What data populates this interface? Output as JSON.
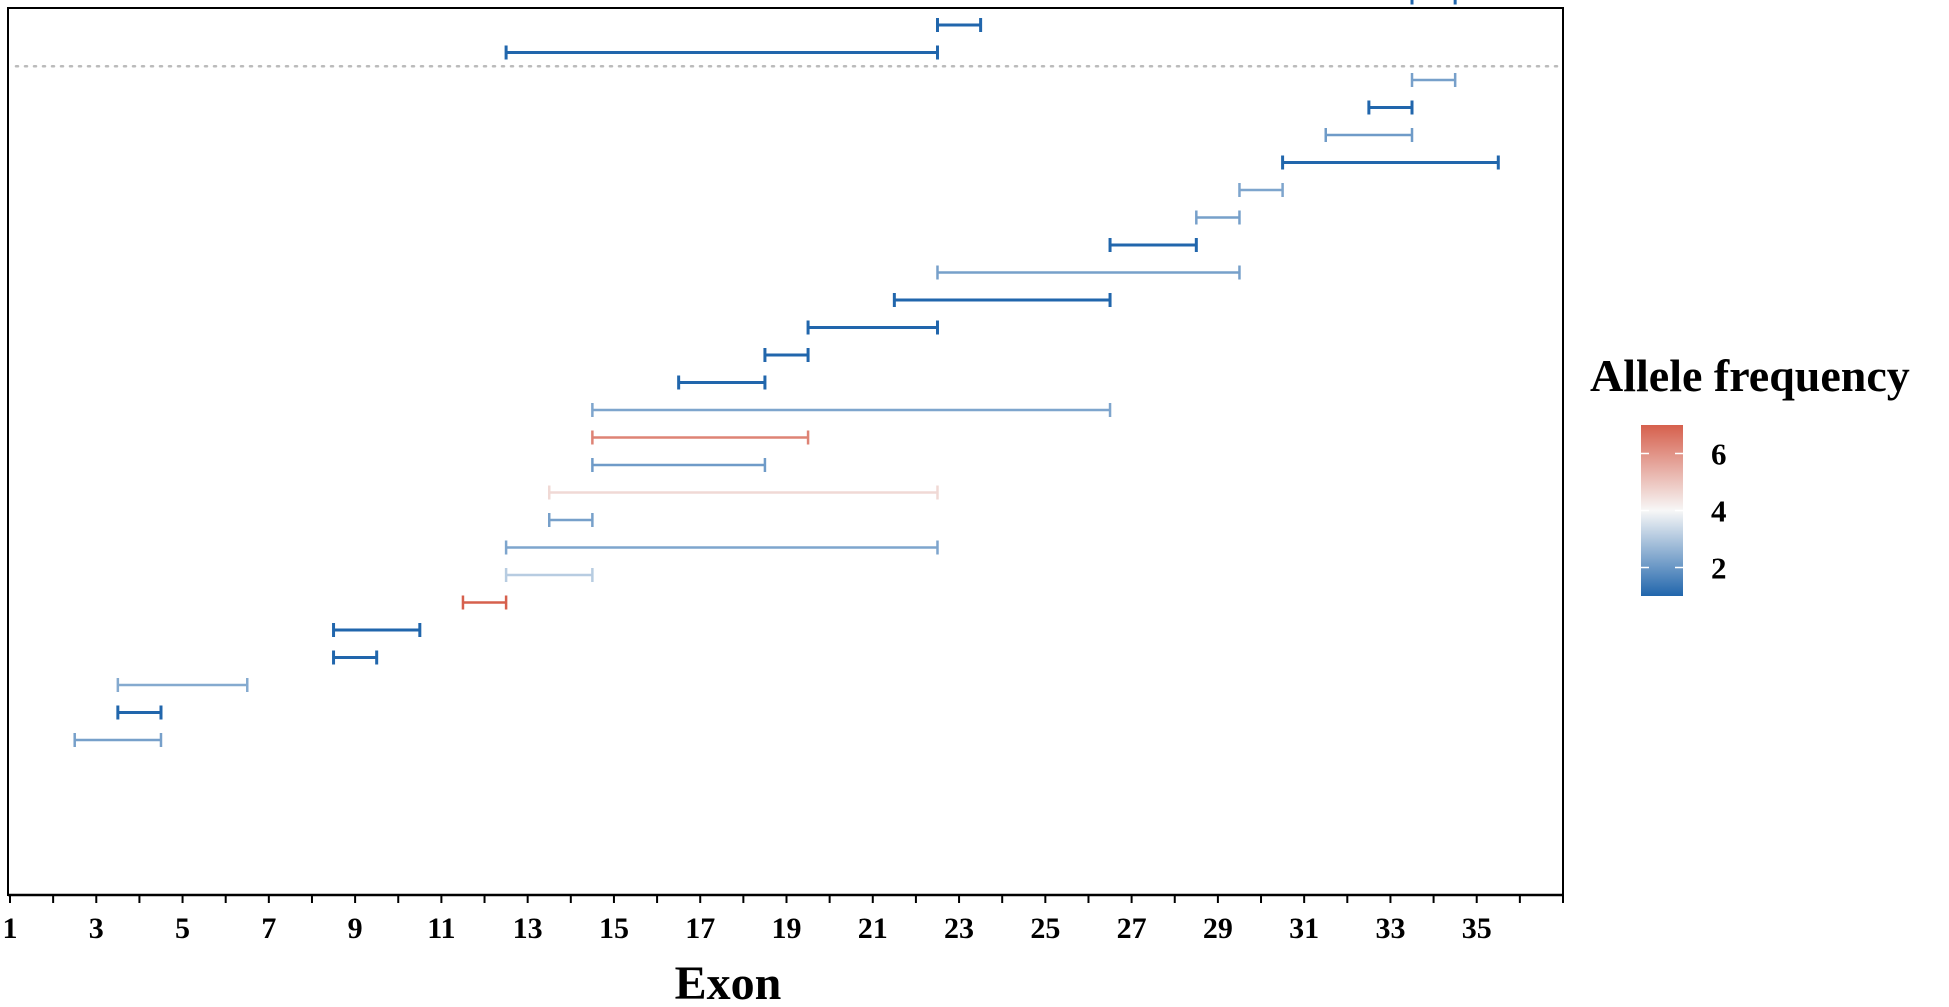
{
  "chart_data": {
    "type": "range",
    "xlabel": "Exon",
    "ylabel": "",
    "xlim": [
      1,
      37
    ],
    "x_ticks": [
      1,
      3,
      5,
      7,
      9,
      11,
      13,
      15,
      17,
      19,
      21,
      23,
      25,
      27,
      29,
      31,
      33,
      35
    ],
    "grid": false,
    "legend": {
      "title": "Allele frequency",
      "position": "right",
      "ticks": [
        2,
        4,
        6
      ],
      "range": [
        1,
        7
      ],
      "low_color": "#2166ac",
      "mid_color": "#f7f7f7",
      "high_color": "#d6604d"
    },
    "separator": {
      "after_row": 25,
      "style": "dotted",
      "color": "#bbbbbb"
    },
    "segments": [
      {
        "row": 1,
        "start": 2.5,
        "end": 4.5,
        "value": 2.2
      },
      {
        "row": 2,
        "start": 3.5,
        "end": 4.5,
        "value": 1.0
      },
      {
        "row": 3,
        "start": 3.5,
        "end": 6.5,
        "value": 2.4
      },
      {
        "row": 4,
        "start": 8.5,
        "end": 9.5,
        "value": 1.0
      },
      {
        "row": 5,
        "start": 8.5,
        "end": 10.5,
        "value": 1.0
      },
      {
        "row": 6,
        "start": 11.5,
        "end": 12.5,
        "value": 7.0
      },
      {
        "row": 7,
        "start": 12.5,
        "end": 14.5,
        "value": 3.1
      },
      {
        "row": 8,
        "start": 12.5,
        "end": 22.5,
        "value": 2.3
      },
      {
        "row": 9,
        "start": 13.5,
        "end": 14.5,
        "value": 2.2
      },
      {
        "row": 10,
        "start": 13.5,
        "end": 22.5,
        "value": 4.6
      },
      {
        "row": 11,
        "start": 14.5,
        "end": 18.5,
        "value": 2.1
      },
      {
        "row": 12,
        "start": 14.5,
        "end": 19.5,
        "value": 6.3
      },
      {
        "row": 13,
        "start": 14.5,
        "end": 26.5,
        "value": 2.3
      },
      {
        "row": 14,
        "start": 16.5,
        "end": 18.5,
        "value": 1.0
      },
      {
        "row": 15,
        "start": 18.5,
        "end": 19.5,
        "value": 1.0
      },
      {
        "row": 16,
        "start": 19.5,
        "end": 22.5,
        "value": 1.0
      },
      {
        "row": 17,
        "start": 21.5,
        "end": 26.5,
        "value": 1.0
      },
      {
        "row": 18,
        "start": 22.5,
        "end": 29.5,
        "value": 2.2
      },
      {
        "row": 19,
        "start": 26.5,
        "end": 28.5,
        "value": 1.0
      },
      {
        "row": 20,
        "start": 28.5,
        "end": 29.5,
        "value": 2.2
      },
      {
        "row": 21,
        "start": 29.5,
        "end": 30.5,
        "value": 2.3
      },
      {
        "row": 22,
        "start": 30.5,
        "end": 35.5,
        "value": 1.0
      },
      {
        "row": 23,
        "start": 31.5,
        "end": 33.5,
        "value": 2.1
      },
      {
        "row": 24,
        "start": 32.5,
        "end": 33.5,
        "value": 1.0
      },
      {
        "row": 25,
        "start": 33.5,
        "end": 34.5,
        "value": 2.2
      },
      {
        "row": 26,
        "start": 12.5,
        "end": 22.5,
        "value": 1.0
      },
      {
        "row": 27,
        "start": 22.5,
        "end": 23.5,
        "value": 1.0
      },
      {
        "row": 28,
        "start": 33.5,
        "end": 34.5,
        "value": 1.0
      }
    ]
  }
}
